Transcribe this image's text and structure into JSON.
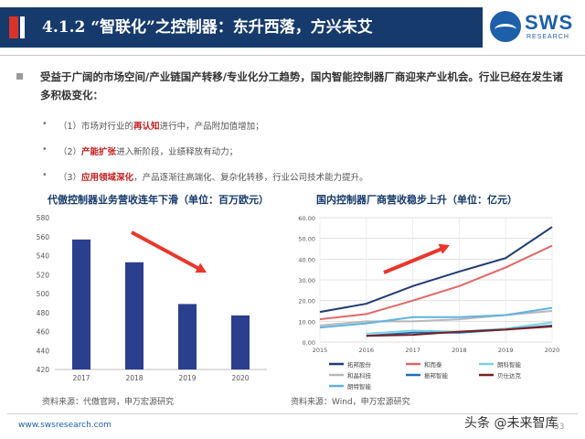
{
  "header": {
    "title": "4.1.2 “智联化”之控制器：东升西落，方兴未艾",
    "logo_main": "SWS",
    "logo_sub": "RESEARCH",
    "bar_color": "#163a6b",
    "accent_color": "#d9342b"
  },
  "lead": {
    "text": "受益于广阔的市场空间/产业链国产转移/专业化分工趋势，国内智能控制器厂商迎来产业机会。行业已经在发生诸多积极变化："
  },
  "points": [
    {
      "bullet": "•",
      "prefix": "（1）市场对行业的",
      "highlight": "再认知",
      "suffix": "进行中，产品附加值增加；"
    },
    {
      "bullet": "•",
      "prefix": "（2）",
      "highlight": "产能扩张",
      "suffix": "进入新阶段，业绩释放有动力；"
    },
    {
      "bullet": "•",
      "prefix": "（3）",
      "highlight": "应用领域深化",
      "suffix": "，产品逐渐往高端化、复杂化转移，行业公司技术能力提升。"
    }
  ],
  "footer": {
    "url": "www.swsresearch.com",
    "page": "33",
    "watermark": "头条 @未来智库"
  },
  "chart_data": [
    {
      "type": "bar",
      "title": "代傲控制器业务营收连年下滑（单位：百万欧元）",
      "source": "资料来源：代傲官网，申万宏源研究",
      "categories": [
        "2017",
        "2018",
        "2019",
        "2020"
      ],
      "values": [
        557,
        533,
        489,
        477
      ],
      "ylim": [
        420,
        580
      ],
      "yticks": [
        "420",
        "440",
        "460",
        "480",
        "500",
        "520",
        "540",
        "560",
        "580"
      ],
      "bar_color": "#2b3f8f",
      "arrow_color": "#e8372c",
      "arrow_direction": "down",
      "grid": false
    },
    {
      "type": "line",
      "title": "国内控制器厂商营收稳步上升（单位：亿元）",
      "source": "资料来源：Wind，申万宏源研究",
      "x": [
        "2015",
        "2016",
        "2017",
        "2018",
        "2019",
        "2020"
      ],
      "ylim": [
        0,
        60
      ],
      "yticks": [
        "0.00",
        "10.00",
        "20.00",
        "30.00",
        "40.00",
        "50.00",
        "60.00"
      ],
      "grid": true,
      "arrow_color": "#e8372c",
      "arrow_direction": "up",
      "legend_position": "bottom",
      "series": [
        {
          "name": "拓邦股份",
          "color": "#1f3b73",
          "values": [
            14.5,
            18.5,
            27,
            34,
            40.5,
            55.5
          ]
        },
        {
          "name": "和而泰",
          "color": "#e06666",
          "values": [
            11,
            13.5,
            20,
            27,
            36,
            46.5
          ]
        },
        {
          "name": "朗科智能",
          "color": "#7fd0e0",
          "values": [
            null,
            4,
            5.5,
            5,
            6.5,
            9.5
          ]
        },
        {
          "name": "和晶科技",
          "color": "#b8b8b8",
          "values": [
            8,
            10,
            10,
            11,
            13,
            15
          ]
        },
        {
          "name": "振邦智能",
          "color": "#1e6fb5",
          "values": [
            null,
            3,
            4.5,
            4.5,
            6,
            8
          ]
        },
        {
          "name": "贝仕达克",
          "color": "#7b1f1f",
          "values": [
            null,
            3,
            3.5,
            5,
            6,
            7.5
          ]
        },
        {
          "name": "朗特智能",
          "color": "#5eb3e0",
          "values": [
            7,
            9,
            12,
            12,
            13,
            16.5
          ]
        }
      ]
    }
  ]
}
